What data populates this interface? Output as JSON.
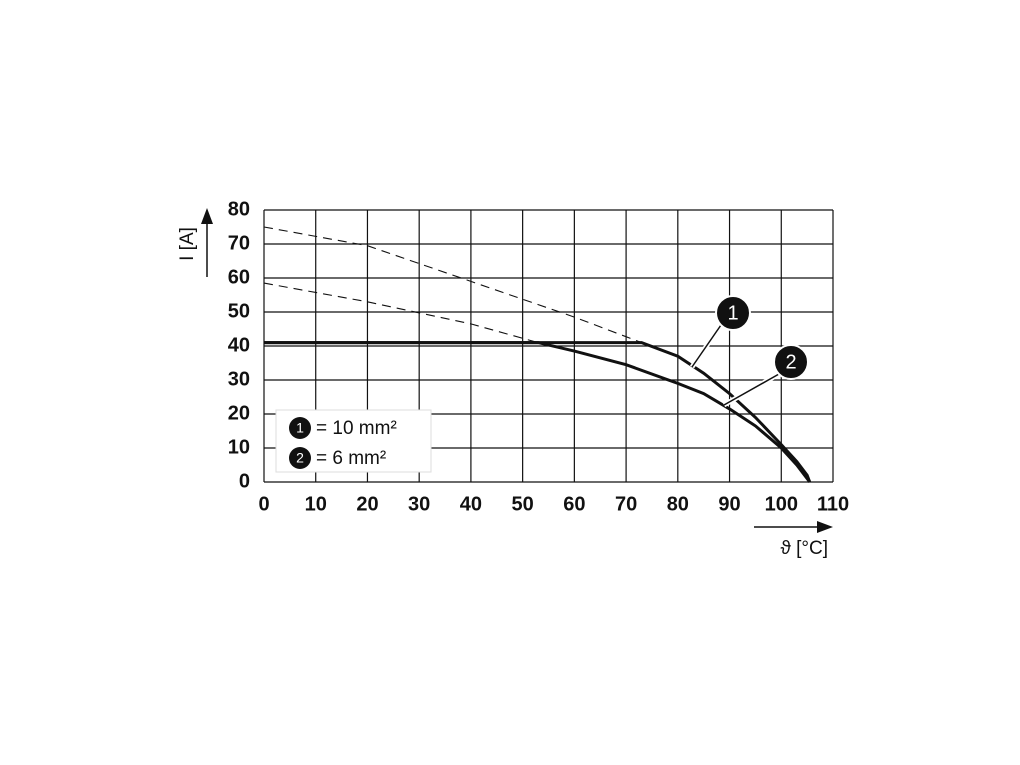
{
  "chart_data": {
    "type": "line",
    "x_label": "ϑ [°C]",
    "y_label": "I [A]",
    "xlim": [
      0,
      110
    ],
    "ylim": [
      0,
      80
    ],
    "xticks": [
      0,
      10,
      20,
      30,
      40,
      50,
      60,
      70,
      80,
      90,
      100,
      110
    ],
    "yticks": [
      0,
      10,
      20,
      30,
      40,
      50,
      60,
      70,
      80
    ],
    "grid": true,
    "series": [
      {
        "name": "= 10 mm²",
        "marker_label": "1",
        "color": "#111111",
        "x": [
          0,
          73,
          80,
          85,
          90,
          95,
          100,
          103,
          105,
          105.5
        ],
        "values": [
          41,
          41,
          37,
          32,
          26,
          19,
          11,
          6,
          2,
          0
        ],
        "extrapolated": {
          "x": [
            0,
            20,
            40,
            60,
            73
          ],
          "values": [
            75,
            69.5,
            59,
            48.5,
            41
          ]
        }
      },
      {
        "name": "= 6 mm²",
        "marker_label": "2",
        "color": "#111111",
        "x": [
          0,
          53,
          60,
          70,
          80,
          85,
          90,
          95,
          100,
          103,
          105.5
        ],
        "values": [
          41,
          41,
          38.5,
          34.5,
          29,
          26,
          21.5,
          16.5,
          10,
          5,
          0
        ],
        "extrapolated": {
          "x": [
            0,
            20,
            40,
            53
          ],
          "values": [
            58.5,
            53,
            46.5,
            41
          ]
        }
      }
    ]
  }
}
